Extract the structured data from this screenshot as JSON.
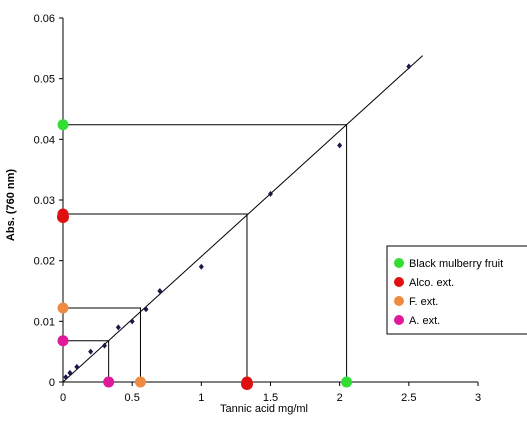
{
  "chart_data": {
    "type": "scatter",
    "title": "",
    "xlabel": "Tannic acid mg/ml",
    "ylabel": "Abs. (760 nm)",
    "xlim": [
      0,
      3
    ],
    "ylim": [
      0,
      0.06
    ],
    "xticks": [
      0,
      0.5,
      1,
      1.5,
      2,
      2.5,
      3
    ],
    "xtick_labels": [
      "0",
      "0.5",
      "1",
      "1.5",
      "2",
      "2.5",
      "3"
    ],
    "yticks": [
      0,
      0.01,
      0.02,
      0.03,
      0.04,
      0.05,
      0.06
    ],
    "ytick_labels": [
      "0",
      "0.01",
      "0.02",
      "0.03",
      "0.04",
      "0.05",
      "0.06"
    ],
    "grid": false,
    "legend_position": "right",
    "standard_points": {
      "x": [
        0.02,
        0.05,
        0.1,
        0.2,
        0.3,
        0.4,
        0.5,
        0.6,
        0.7,
        1.0,
        1.5,
        2.0,
        2.5
      ],
      "y": [
        0.0008,
        0.0015,
        0.0025,
        0.005,
        0.006,
        0.009,
        0.01,
        0.012,
        0.015,
        0.019,
        0.031,
        0.039,
        0.052
      ]
    },
    "regression_line": {
      "x": [
        0,
        2.6
      ],
      "y": [
        0,
        0.0538
      ]
    },
    "series": [
      {
        "name": "Black mulberry fruit",
        "color": "#33dd33",
        "absorbance": 0.0424,
        "concentration": 2.05
      },
      {
        "name": "Alco. ext.",
        "color": "#e01010",
        "absorbance": 0.0277,
        "concentration": 1.33
      },
      {
        "name": "F. ext.",
        "color": "#f08a40",
        "absorbance": 0.0122,
        "concentration": 0.56
      },
      {
        "name": "A. ext.",
        "color": "#e0189a",
        "absorbance": 0.0068,
        "concentration": 0.33
      }
    ]
  }
}
